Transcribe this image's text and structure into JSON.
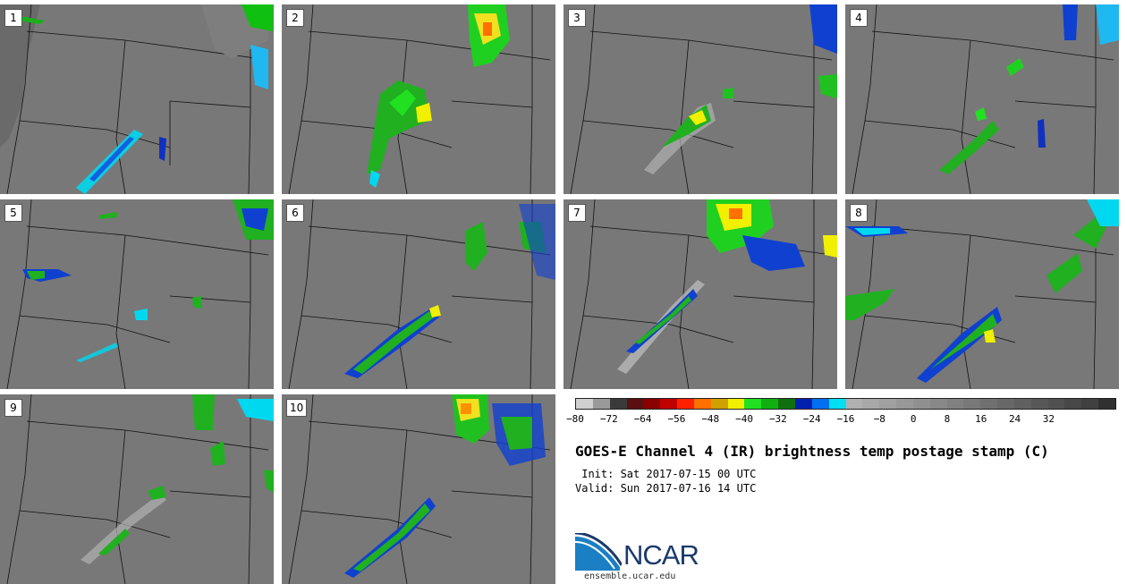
{
  "panels": [
    {
      "label": "1"
    },
    {
      "label": "2"
    },
    {
      "label": "3"
    },
    {
      "label": "4"
    },
    {
      "label": "5"
    },
    {
      "label": "6"
    },
    {
      "label": "7"
    },
    {
      "label": "8"
    },
    {
      "label": "9"
    },
    {
      "label": "10"
    }
  ],
  "colorbar": {
    "colors": [
      "#d0d0d0",
      "#9a9a9a",
      "#3a3a3a",
      "#5a1010",
      "#8a0000",
      "#c00000",
      "#ff2000",
      "#ff7000",
      "#d0a000",
      "#f0f000",
      "#20e020",
      "#10b010",
      "#107010",
      "#0020b0",
      "#0070f0",
      "#00e0f0",
      "#b0b0b0",
      "#a8a8a8",
      "#a0a0a0",
      "#989898",
      "#909090",
      "#888888",
      "#808080",
      "#787878",
      "#707070",
      "#686868",
      "#606060",
      "#585858",
      "#505050",
      "#484848",
      "#404040",
      "#303030"
    ],
    "ticks": [
      "−80",
      "−72",
      "−64",
      "−56",
      "−48",
      "−40",
      "−32",
      "−24",
      "−16",
      "−8",
      "0",
      "8",
      "16",
      "24",
      "32"
    ]
  },
  "title": "GOES-E Channel 4 (IR) brightness temp postage stamp (C)",
  "init": " Init: Sat 2017-07-15 00 UTC",
  "valid": "Valid: Sun 2017-07-16 14 UTC",
  "logo": {
    "name": "NCAR",
    "url": "ensemble.ucar.edu"
  }
}
